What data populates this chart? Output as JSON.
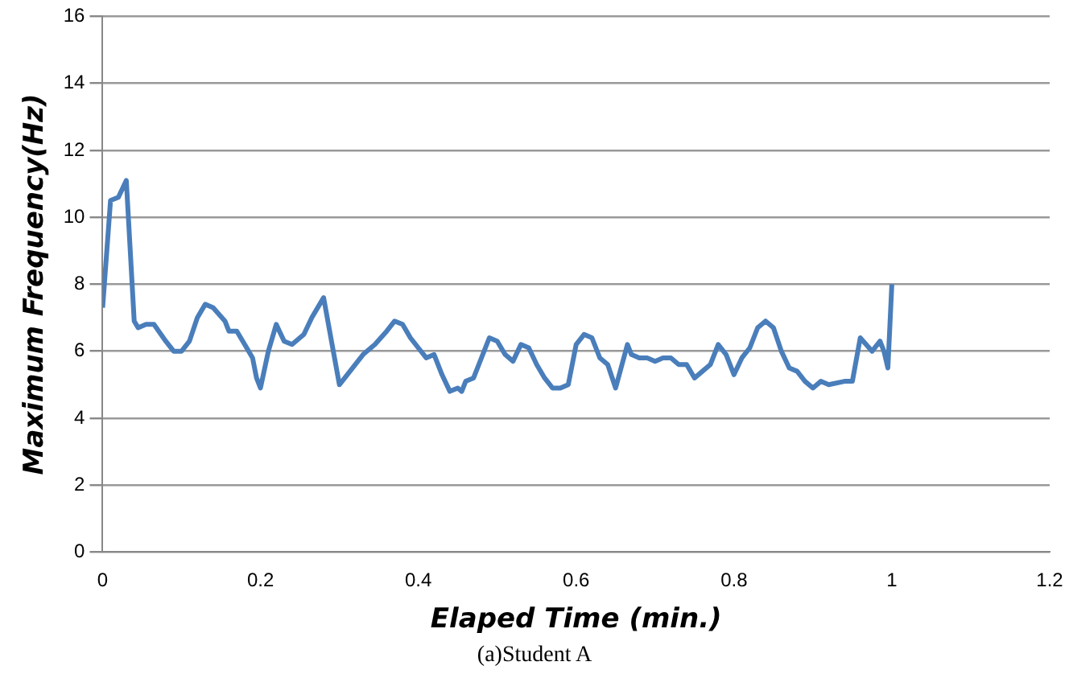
{
  "chart_data": {
    "type": "line",
    "xlabel": "Elaped Time (min.)",
    "ylabel": "Maximum Frequency(Hz)",
    "annotations": [
      "(a)Student A"
    ],
    "xlim": [
      0,
      1.2
    ],
    "xticks": [
      0,
      0.2,
      0.4,
      0.6,
      0.8,
      1,
      1.2
    ],
    "ylim": [
      0,
      16
    ],
    "yticks": [
      0,
      2,
      4,
      6,
      8,
      10,
      12,
      14,
      16
    ],
    "grid": "y",
    "legend": false,
    "marker": "none",
    "line_style": "solid",
    "series": [
      {
        "color": "#4a7ebb",
        "x": [
          0,
          0.01,
          0.02,
          0.03,
          0.04,
          0.045,
          0.055,
          0.065,
          0.08,
          0.09,
          0.1,
          0.11,
          0.12,
          0.13,
          0.14,
          0.155,
          0.16,
          0.17,
          0.18,
          0.19,
          0.195,
          0.2,
          0.21,
          0.22,
          0.23,
          0.24,
          0.255,
          0.265,
          0.275,
          0.28,
          0.29,
          0.3,
          0.31,
          0.32,
          0.33,
          0.345,
          0.36,
          0.37,
          0.38,
          0.39,
          0.4,
          0.41,
          0.42,
          0.43,
          0.44,
          0.45,
          0.455,
          0.46,
          0.47,
          0.48,
          0.49,
          0.5,
          0.51,
          0.52,
          0.53,
          0.54,
          0.55,
          0.56,
          0.57,
          0.58,
          0.59,
          0.6,
          0.61,
          0.62,
          0.63,
          0.64,
          0.65,
          0.665,
          0.67,
          0.68,
          0.69,
          0.7,
          0.71,
          0.72,
          0.73,
          0.74,
          0.75,
          0.76,
          0.77,
          0.78,
          0.79,
          0.8,
          0.81,
          0.82,
          0.83,
          0.84,
          0.85,
          0.86,
          0.87,
          0.88,
          0.89,
          0.9,
          0.91,
          0.92,
          0.94,
          0.95,
          0.96,
          0.975,
          0.985,
          0.99,
          0.995,
          1
        ],
        "values": [
          7.3,
          10.5,
          10.6,
          11.1,
          6.9,
          6.7,
          6.8,
          6.8,
          6.3,
          6.0,
          6.0,
          6.3,
          7.0,
          7.4,
          7.3,
          6.9,
          6.6,
          6.6,
          6.2,
          5.8,
          5.2,
          4.9,
          6.0,
          6.8,
          6.3,
          6.2,
          6.5,
          7.0,
          7.4,
          7.6,
          6.3,
          5.0,
          5.3,
          5.6,
          5.9,
          6.2,
          6.6,
          6.9,
          6.8,
          6.4,
          6.1,
          5.8,
          5.9,
          5.3,
          4.8,
          4.9,
          4.8,
          5.1,
          5.2,
          5.8,
          6.4,
          6.3,
          5.9,
          5.7,
          6.2,
          6.1,
          5.6,
          5.2,
          4.9,
          4.9,
          5.0,
          6.2,
          6.5,
          6.4,
          5.8,
          5.6,
          4.9,
          6.2,
          5.9,
          5.8,
          5.8,
          5.7,
          5.8,
          5.8,
          5.6,
          5.6,
          5.2,
          5.4,
          5.6,
          6.2,
          5.9,
          5.3,
          5.8,
          6.1,
          6.7,
          6.9,
          6.7,
          6.0,
          5.5,
          5.4,
          5.1,
          4.9,
          5.1,
          5.0,
          5.1,
          5.1,
          6.4,
          6.0,
          6.3,
          6.0,
          5.5,
          8.0
        ]
      }
    ]
  }
}
